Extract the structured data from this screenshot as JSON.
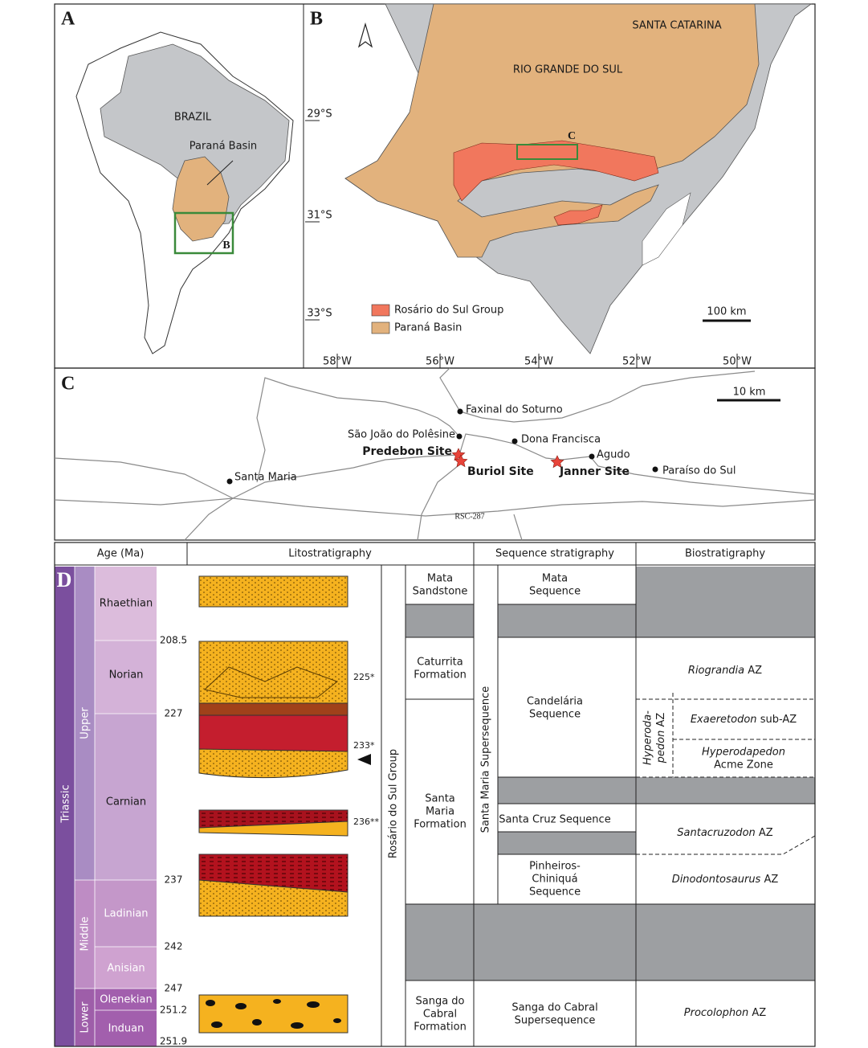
{
  "panel_a": {
    "label": "A",
    "country": "BRAZIL",
    "basin": "Paraná Basin",
    "inset": "B"
  },
  "panel_b": {
    "label": "B",
    "states": [
      "SANTA CATARINA",
      "RIO GRANDE DO SUL"
    ],
    "inset": "C",
    "latitudes": [
      "29°S",
      "31°S",
      "33°S"
    ],
    "longitudes": [
      "58°W",
      "56°W",
      "54°W",
      "52°W",
      "50°W"
    ],
    "legend": [
      "Rosário do Sul Group",
      "Paraná Basin"
    ],
    "scale": "100 km"
  },
  "panel_c": {
    "label": "C",
    "scale": "10 km",
    "towns": [
      "Faxinal do Soturno",
      "São João do Polêsine",
      "Dona Francisca",
      "Agudo",
      "Paraíso do Sul",
      "Santa Maria"
    ],
    "sites": [
      "Predebon Site",
      "Buriol Site",
      "Janner Site"
    ],
    "road": "RSC-287"
  },
  "panel_d": {
    "label": "D",
    "headers": [
      "Age (Ma)",
      "Litostratigraphy",
      "Sequence stratigraphy",
      "Biostratigraphy"
    ],
    "period": "Triassic",
    "epochs": [
      "Upper",
      "Middle",
      "Lower"
    ],
    "stages": [
      "Rhaethian",
      "Norian",
      "Carnian",
      "Ladinian",
      "Anisian",
      "Olenekian",
      "Induan"
    ],
    "ages": [
      "208.5",
      "227",
      "237",
      "242",
      "247",
      "251.2",
      "251.9"
    ],
    "radiometric": [
      "225*",
      "233*",
      "236**"
    ],
    "group": "Rosário do Sul Group",
    "formations": [
      [
        "Mata",
        "Sandstone"
      ],
      [
        "Caturrita",
        "Formation"
      ],
      [
        "Santa",
        "Maria",
        "Formation"
      ],
      [
        "Sanga do",
        "Cabral",
        "Formation"
      ]
    ],
    "supersequence": "Santa Maria Supersequence",
    "sequences": [
      [
        "Mata",
        "Sequence"
      ],
      [
        "Candelária",
        "Sequence"
      ],
      [
        "Santa Cruz Sequence"
      ],
      [
        "Pinheiros-",
        "Chiniquá",
        "Sequence"
      ],
      [
        "Sanga do Cabral",
        "Supersequence"
      ]
    ],
    "biozones": [
      {
        "taxon": "Riograndia",
        "rank": "AZ"
      },
      {
        "taxon": "Exaeretodon",
        "rank": "sub-AZ"
      },
      {
        "taxon": "Hyperodapedon",
        "rank": "Acme Zone"
      },
      {
        "taxon": "Santacruzodon",
        "rank": "AZ"
      },
      {
        "taxon": "Dinodontosaurus",
        "rank": "AZ"
      },
      {
        "taxon": "Procolophon",
        "rank": "AZ"
      }
    ],
    "parent_zone": {
      "taxon_lines": [
        "Hyperoda-",
        "pedon"
      ],
      "rank": "AZ"
    }
  }
}
